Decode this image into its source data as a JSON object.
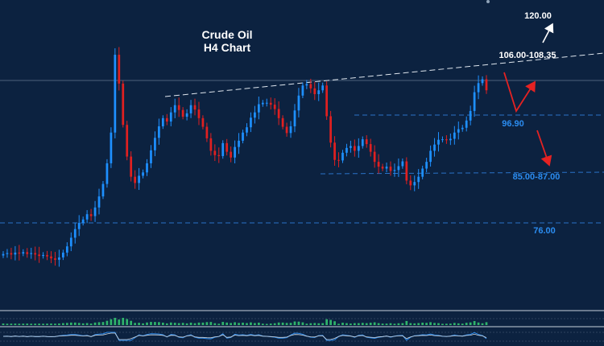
{
  "chart_data": {
    "type": "candlestick",
    "title": "Crude Oil",
    "subtitle": "H4 Chart",
    "price_range": [
      62,
      124
    ],
    "grid": false,
    "levels": [
      {
        "label": "120.00",
        "value": 120.0
      },
      {
        "label": "106.00-108.35",
        "value": 107.2
      },
      {
        "label": "96.90",
        "value": 96.9
      },
      {
        "label": "85.00-87.00",
        "value": 86.0
      },
      {
        "label": "76.00",
        "value": 76.0
      }
    ],
    "colors": {
      "background": "#0c2240",
      "bull": "#1e90ff",
      "bear": "#e02020",
      "level_label": "#2b8cf0",
      "support_line": "#2a73c8",
      "arrow_white": "#ffffff",
      "arrow_red": "#e52222",
      "volume": "#2fb36b"
    },
    "closes": [
      72.1,
      72.3,
      72.0,
      72.4,
      72.2,
      72.5,
      72.1,
      72.3,
      72.0,
      71.7,
      71.9,
      71.6,
      71.2,
      70.9,
      71.4,
      72.4,
      73.7,
      75.5,
      77.3,
      78.6,
      79.3,
      80.4,
      80.0,
      81.8,
      84.1,
      86.7,
      91.0,
      97.4,
      113.6,
      107.6,
      99.0,
      92.4,
      88.2,
      86.9,
      88.4,
      89.1,
      91.0,
      93.7,
      96.3,
      98.7,
      100.4,
      99.7,
      101.6,
      103.1,
      102.1,
      100.7,
      101.4,
      103.1,
      102.2,
      100.4,
      98.6,
      96.2,
      93.6,
      92.7,
      92.5,
      95.2,
      93.4,
      92.2,
      94.4,
      95.7,
      97.4,
      98.5,
      100.5,
      101.6,
      103.3,
      103.6,
      103.6,
      103.2,
      102.3,
      100.4,
      98.6,
      97.3,
      98.7,
      102.0,
      105.1,
      107.2,
      107.5,
      106.6,
      105.4,
      106.2,
      107.2,
      100.8,
      95.3,
      91.7,
      91.6,
      93.2,
      94.2,
      94.6,
      93.6,
      94.6,
      96.0,
      95.0,
      93.4,
      91.3,
      90.3,
      89.9,
      90.3,
      89.4,
      89.6,
      90.4,
      91.4,
      87.4,
      86.4,
      87.1,
      88.2,
      89.9,
      91.3,
      93.6,
      94.9,
      95.9,
      96.0,
      95.8,
      96.1,
      97.4,
      98.1,
      98.4,
      99.9,
      101.9,
      105.8,
      107.7,
      108.5,
      106.2
    ]
  }
}
